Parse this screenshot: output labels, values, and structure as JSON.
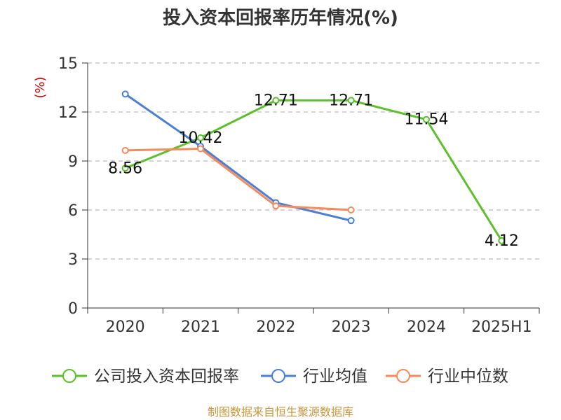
{
  "chart_data": {
    "type": "line",
    "title": "投入资本回报率历年情况(%)",
    "unit_label": "(%)",
    "categories": [
      "2020",
      "2021",
      "2022",
      "2023",
      "2024",
      "2025H1"
    ],
    "ylim": [
      0,
      15
    ],
    "yticks": [
      0,
      3,
      6,
      9,
      12,
      15
    ],
    "grid": true,
    "legend_position": "bottom",
    "series": [
      {
        "name": "公司投入资本回报率",
        "color": "#5ac12c",
        "values": [
          8.56,
          10.42,
          12.71,
          12.71,
          11.54,
          4.12
        ],
        "data_labels": [
          "8.56",
          "10.42",
          "12.71",
          "12.71",
          "11.54",
          "4.12"
        ]
      },
      {
        "name": "行业均值",
        "color": "#4a7fd8",
        "values": [
          13.1,
          9.9,
          6.45,
          5.35,
          null,
          null
        ]
      },
      {
        "name": "行业中位数",
        "color": "#f58a5a",
        "values": [
          9.65,
          9.75,
          6.25,
          6.0,
          null,
          null
        ]
      }
    ]
  },
  "source": "制图数据来自恒生聚源数据库"
}
